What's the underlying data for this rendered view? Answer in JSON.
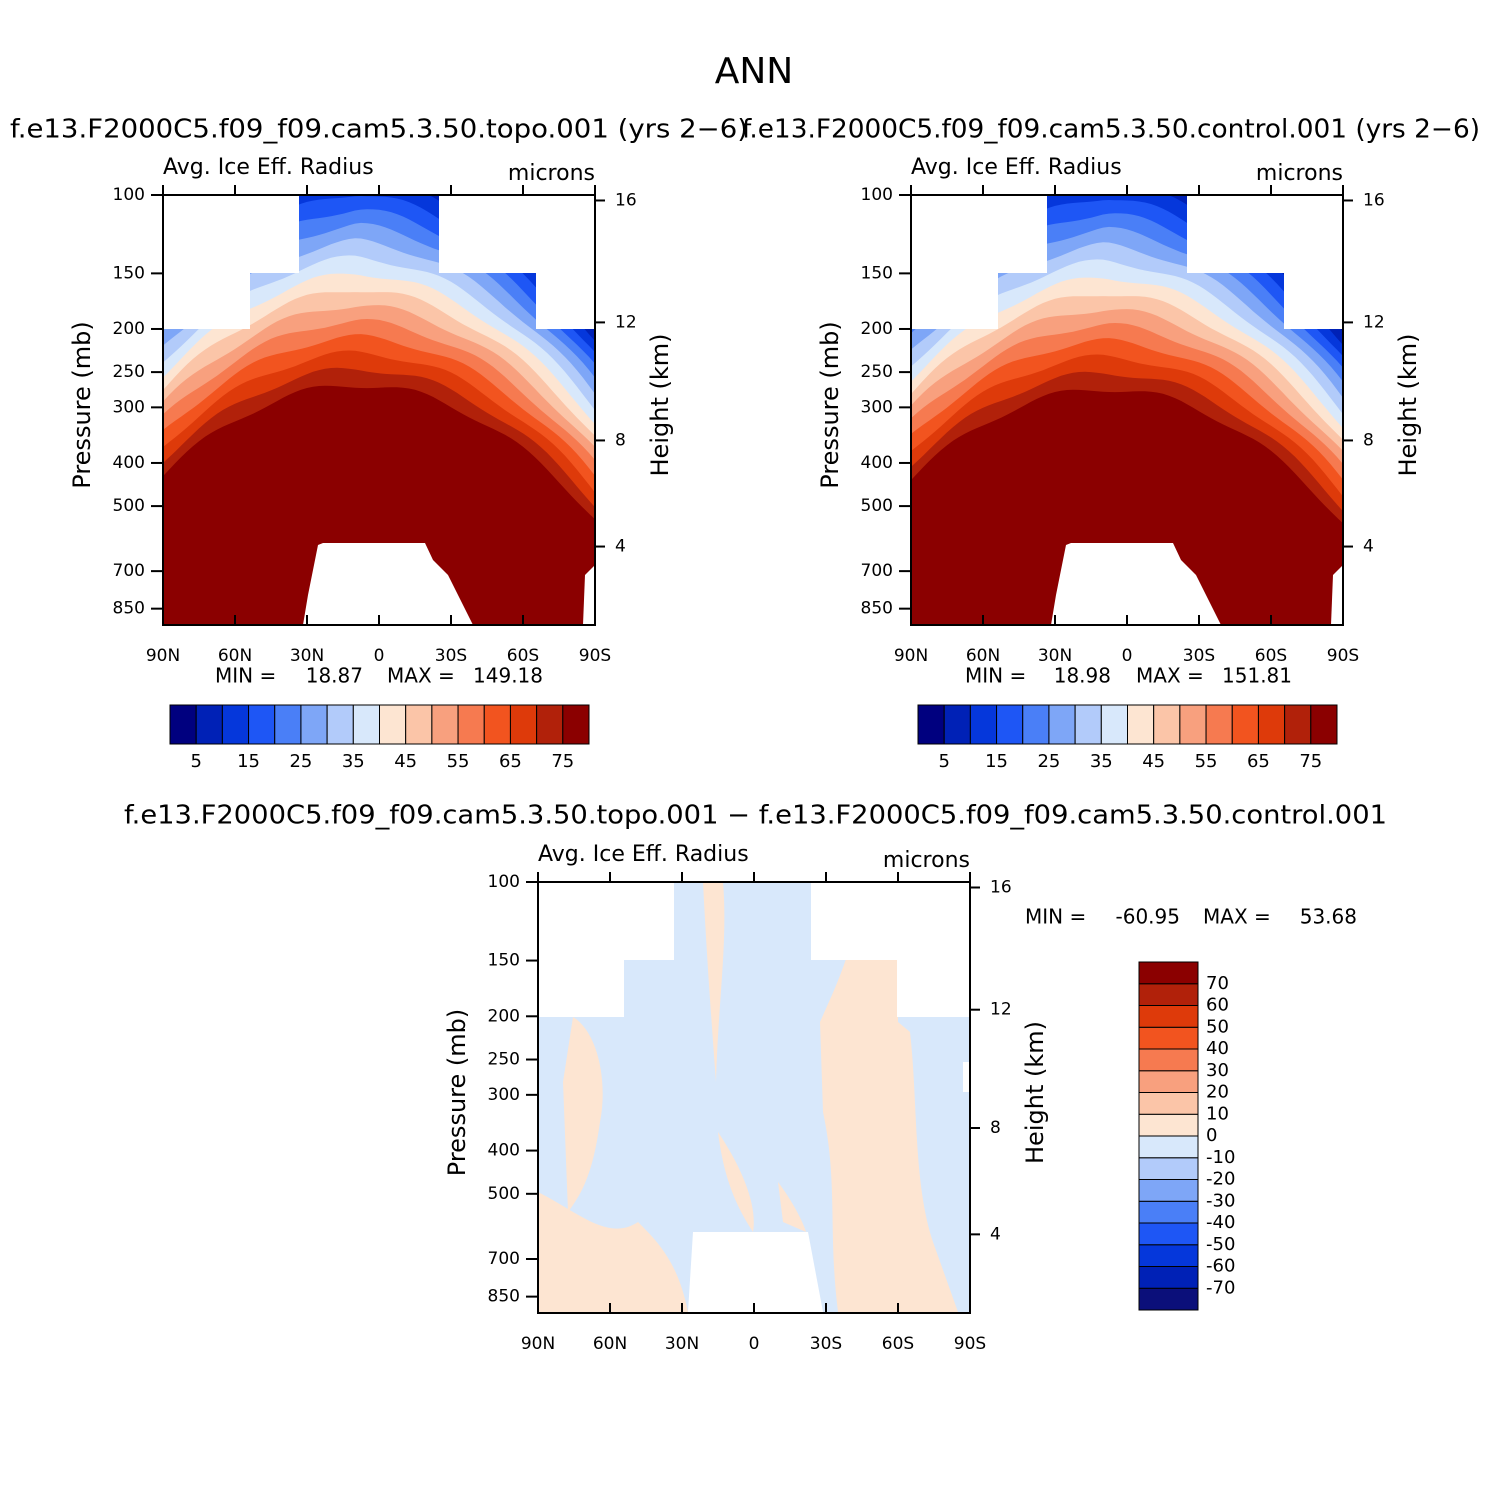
{
  "title": "ANN",
  "chart_data": [
    {
      "type": "contour",
      "title": "f.e13.F2000C5.f09_f09.cam5.3.50.topo.001 (yrs 2−6)",
      "left_string": "Avg. Ice Eff. Radius",
      "right_string": "microns",
      "ylabel": "Pressure (mb)",
      "y2label": "Height (km)",
      "xlim": [
        90,
        -90
      ],
      "xticks": [
        {
          "value": 90,
          "label": "90N"
        },
        {
          "value": 60,
          "label": "60N"
        },
        {
          "value": 30,
          "label": "30N"
        },
        0,
        {
          "value": -30,
          "label": "30S"
        },
        {
          "value": -60,
          "label": "60S"
        },
        {
          "value": -90,
          "label": "90S"
        }
      ],
      "ylim": [
        100,
        925
      ],
      "ylog": true,
      "yreverse": true,
      "yticks": [
        100,
        150,
        200,
        250,
        300,
        400,
        500,
        700,
        850
      ],
      "y2scale": "standard-atmosphere",
      "y2ticks": [
        4,
        8,
        12,
        16
      ],
      "min_label": "MIN =",
      "min": 18.87,
      "max_label": "MAX =",
      "max": 149.18,
      "colorbar": {
        "orientation": "horizontal",
        "colors": [
          "#00007f",
          "#0021b6",
          "#0537db",
          "#1e56f5",
          "#4a7ff7",
          "#7ea6f7",
          "#b2cbfa",
          "#d8e8fb",
          "#fde5d2",
          "#fbc5a8",
          "#f8a07e",
          "#f67a50",
          "#f2541f",
          "#de3a0a",
          "#b1210a",
          "#8b0000"
        ],
        "labels": [
          5,
          15,
          25,
          35,
          45,
          55,
          65,
          75
        ]
      }
    },
    {
      "type": "contour",
      "title": "f.e13.F2000C5.f09_f09.cam5.3.50.control.001 (yrs 2−6)",
      "left_string": "Avg. Ice Eff. Radius",
      "right_string": "microns",
      "ylabel": "Pressure (mb)",
      "y2label": "Height (km)",
      "xlim": [
        90,
        -90
      ],
      "xticks": [
        {
          "value": 90,
          "label": "90N"
        },
        {
          "value": 60,
          "label": "60N"
        },
        {
          "value": 30,
          "label": "30N"
        },
        0,
        {
          "value": -30,
          "label": "30S"
        },
        {
          "value": -60,
          "label": "60S"
        },
        {
          "value": -90,
          "label": "90S"
        }
      ],
      "ylim": [
        100,
        925
      ],
      "ylog": true,
      "yreverse": true,
      "yticks": [
        100,
        150,
        200,
        250,
        300,
        400,
        500,
        700,
        850
      ],
      "y2scale": "standard-atmosphere",
      "y2ticks": [
        4,
        8,
        12,
        16
      ],
      "min_label": "MIN =",
      "min": 18.98,
      "max_label": "MAX =",
      "max": 151.81,
      "colorbar": {
        "orientation": "horizontal",
        "colors": [
          "#00007f",
          "#0021b6",
          "#0537db",
          "#1e56f5",
          "#4a7ff7",
          "#7ea6f7",
          "#b2cbfa",
          "#d8e8fb",
          "#fde5d2",
          "#fbc5a8",
          "#f8a07e",
          "#f67a50",
          "#f2541f",
          "#de3a0a",
          "#b1210a",
          "#8b0000"
        ],
        "labels": [
          5,
          15,
          25,
          35,
          45,
          55,
          65,
          75
        ]
      }
    },
    {
      "type": "contour",
      "title": "f.e13.F2000C5.f09_f09.cam5.3.50.topo.001 − f.e13.F2000C5.f09_f09.cam5.3.50.control.001",
      "left_string": "Avg. Ice Eff. Radius",
      "right_string": "microns",
      "ylabel": "Pressure (mb)",
      "y2label": "Height (km)",
      "xlim": [
        90,
        -90
      ],
      "xticks": [
        {
          "value": 90,
          "label": "90N"
        },
        {
          "value": 60,
          "label": "60N"
        },
        {
          "value": 30,
          "label": "30N"
        },
        0,
        {
          "value": -30,
          "label": "30S"
        },
        {
          "value": -60,
          "label": "60S"
        },
        {
          "value": -90,
          "label": "90S"
        }
      ],
      "ylim": [
        100,
        925
      ],
      "ylog": true,
      "yreverse": true,
      "yticks": [
        100,
        150,
        200,
        250,
        300,
        400,
        500,
        700,
        850
      ],
      "y2scale": "standard-atmosphere",
      "y2ticks": [
        4,
        8,
        12,
        16
      ],
      "min_label": "MIN =",
      "min": -60.95,
      "max_label": "MAX =",
      "max": 53.68,
      "colorbar": {
        "orientation": "vertical",
        "colors": [
          "#0b0f7a",
          "#0021b6",
          "#0537db",
          "#1e56f5",
          "#4a7ff7",
          "#7ea6f7",
          "#b2cbfa",
          "#d8e8fb",
          "#fde5d2",
          "#fbc5a8",
          "#f8a07e",
          "#f67a50",
          "#f2541f",
          "#de3a0a",
          "#b1210a",
          "#8b0000"
        ],
        "labels": [
          -70,
          -60,
          -50,
          -40,
          -30,
          -20,
          -10,
          0,
          10,
          20,
          30,
          40,
          50,
          60,
          70
        ]
      }
    }
  ]
}
